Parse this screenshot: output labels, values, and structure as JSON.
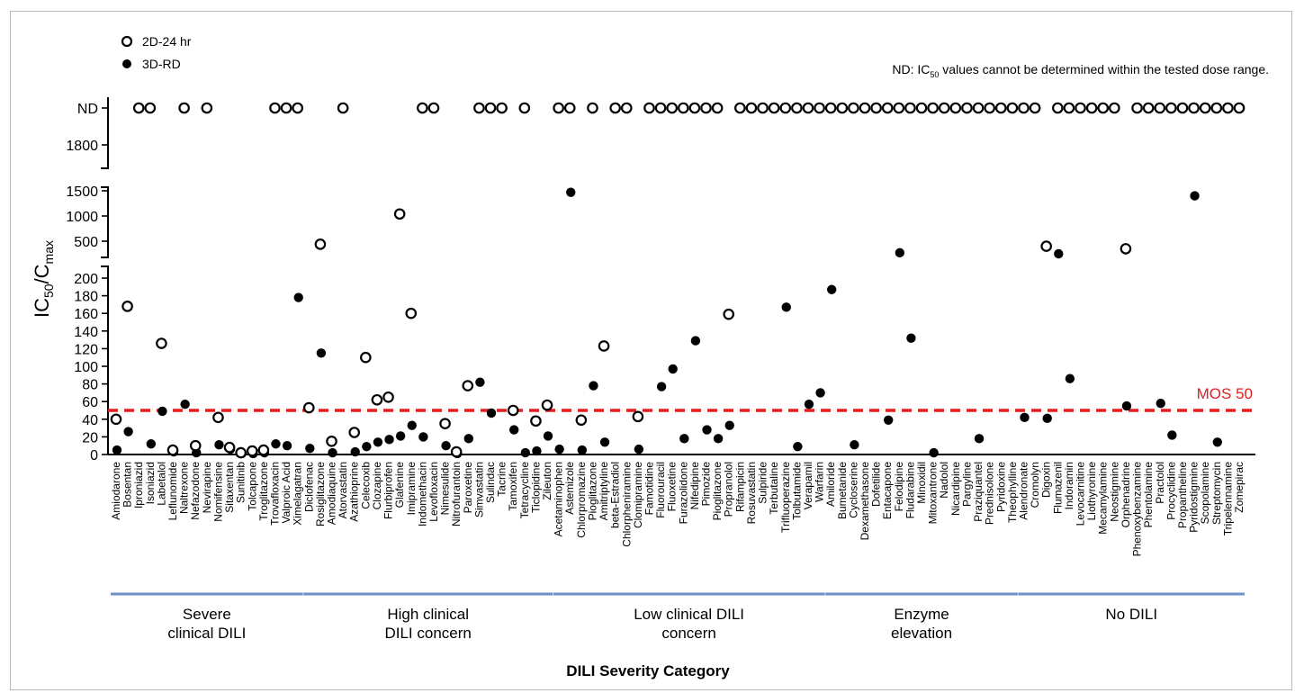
{
  "chart_data": {
    "type": "scatter",
    "title": "",
    "xlabel": "DILI Severity Category",
    "ylabel_main": "IC",
    "ylabel_sub1": "50",
    "ylabel_mid": "/C",
    "ylabel_sub2": "max",
    "note_prefix": "ND: IC",
    "note_sub": "50",
    "note_suffix": " values cannot be determined within the tested dose range.",
    "threshold": {
      "value": 50,
      "label": "MOS 50",
      "color": "#e02020"
    },
    "group_color": "#6e8fc8",
    "y_ticks_low": [
      "0",
      "20",
      "40",
      "60",
      "80",
      "100",
      "120",
      "140",
      "160",
      "180",
      "200"
    ],
    "y_ticks_mid": [
      "500",
      "1000",
      "1500"
    ],
    "y_ticks_top": [
      "1800",
      "ND"
    ],
    "series": [
      {
        "name": "2D-24 hr",
        "marker": "open-circle"
      },
      {
        "name": "3D-RD",
        "marker": "filled-circle"
      }
    ],
    "legend_position": "top-left",
    "groups": [
      {
        "name_line1": "Severe",
        "name_line2": "clinical DILI",
        "drugs": [
          "Amiodarone",
          "Bosentan",
          "Iproniazid",
          "Isoniazid",
          "Labetalol",
          "Leflunomide",
          "Naltrexone",
          "Nefazodone",
          "Nevirapine",
          "Nomifensine",
          "Sitaxentan",
          "Sunitinib",
          "Tolcapone",
          "Troglitazone",
          "Trovafloxacin",
          "Valproic Acid",
          "Ximelagatran"
        ],
        "d2": [
          40,
          168,
          "ND",
          "ND",
          126,
          5,
          "ND",
          10,
          "ND",
          42,
          8,
          2,
          4,
          5,
          "ND",
          "ND",
          "ND"
        ],
        "d3": [
          5,
          26,
          "ND",
          12,
          49,
          3,
          57,
          2,
          "ND",
          11,
          6,
          1,
          1,
          2,
          12,
          10,
          178
        ]
      },
      {
        "name_line1": "High clinical",
        "name_line2": "DILI concern",
        "drugs": [
          "Diclofenac",
          "Rosiglitazone",
          "Amodiaquine",
          "Atorvastatin",
          "Azathioprine",
          "Celecoxib",
          "Clozapine",
          "Flurbiprofen",
          "Glafenine",
          "Imipramine",
          "Indomethacin",
          "Levofloxacin",
          "Nimesulide",
          "Nitrofurantoin",
          "Paroxetine",
          "Simvastatin",
          "Sulindac",
          "Tacrine",
          "Tamoxifen",
          "Tetracycline",
          "Ticlopidine",
          "Zileuton"
        ],
        "d2": [
          53,
          440,
          15,
          "ND",
          25,
          110,
          62,
          65,
          1040,
          160,
          "ND",
          "ND",
          35,
          3,
          78,
          "ND",
          "ND",
          "ND",
          50,
          "ND",
          38,
          56
        ],
        "d3": [
          7,
          115,
          2,
          "ND",
          3,
          9,
          14,
          17,
          21,
          33,
          20,
          "ND",
          10,
          1,
          18,
          82,
          47,
          "ND",
          28,
          2,
          4,
          21
        ]
      },
      {
        "name_line1": "Low clinical DILI",
        "name_line2": "concern",
        "drugs": [
          "Acetaminophen",
          "Astemizole",
          "Chlorpromazine",
          "Pioglitazone",
          "Amitriptyline",
          "beta-Estradiol",
          "Chlorpheniramine",
          "Clomipramine",
          "Famotidine",
          "Fluorouracil",
          "Fluoxetine",
          "Furazolidone",
          "Nifedipine",
          "Pimozide",
          "Pioglitazone",
          "Propranolol",
          "Rifampicin",
          "Rosuvastatin",
          "Sulpiride",
          "Terbutaline",
          "Trifluoperazine",
          "Tolbutamide",
          "Verapamil",
          "Warfarin"
        ],
        "d2": [
          "ND",
          "ND",
          39,
          "ND",
          123,
          "ND",
          "ND",
          43,
          "ND",
          "ND",
          "ND",
          "ND",
          "ND",
          "ND",
          "ND",
          159,
          "ND",
          "ND",
          "ND",
          "ND",
          "ND",
          "ND",
          "ND",
          "ND"
        ],
        "d3": [
          6,
          1470,
          5,
          78,
          14,
          "ND",
          "ND",
          6,
          "ND",
          77,
          97,
          18,
          129,
          28,
          18,
          33,
          "ND",
          "ND",
          "ND",
          "ND",
          167,
          9,
          57,
          70
        ]
      },
      {
        "name_line1": "Enzyme",
        "name_line2": "elevation",
        "drugs": [
          "Amiloride",
          "Bumetanide",
          "Cycloserine",
          "Dexamethasone",
          "Dofetilide",
          "Entacapone",
          "Felodipine",
          "Fludarabine",
          "Minoxidil",
          "Mitoxantrone",
          "Nadolol",
          "Nicardipine",
          "Pargyline",
          "Praziquantel",
          "Prednisolone",
          "Pyridoxine",
          "Theophylline"
        ],
        "d2": [
          "ND",
          "ND",
          "ND",
          "ND",
          "ND",
          "ND",
          "ND",
          "ND",
          "ND",
          "ND",
          "ND",
          "ND",
          "ND",
          "ND",
          "ND",
          "ND",
          "ND"
        ],
        "d3": [
          187,
          "ND",
          11,
          "ND",
          "ND",
          39,
          270,
          132,
          "ND",
          2,
          "ND",
          "ND",
          "ND",
          18,
          "ND",
          "ND",
          "ND"
        ]
      },
      {
        "name_line1": "No DILI",
        "name_line2": "",
        "drugs": [
          "Alendronate",
          "Cromolyn",
          "Digoxin",
          "Flumazenil",
          "Indoramin",
          "Levocarnitine",
          "Liothyronine",
          "Mecamylamine",
          "Neostigmine",
          "Orphenadrine",
          "Phenoxybenzamine",
          "Phentolamine",
          "Practolol",
          "Procyclidine",
          "Propantheline",
          "Pyridostigmine",
          "Scopolamine",
          "Streptomycin",
          "Tripelennamine",
          "Zomepirac"
        ],
        "d2": [
          "ND",
          "ND",
          400,
          "ND",
          "ND",
          "ND",
          "ND",
          "ND",
          "ND",
          350,
          "ND",
          "ND",
          "ND",
          "ND",
          "ND",
          "ND",
          "ND",
          "ND",
          "ND",
          "ND"
        ],
        "d3": [
          42,
          "ND",
          41,
          250,
          86,
          "ND",
          "ND",
          "ND",
          "ND",
          55,
          "ND",
          "ND",
          58,
          22,
          "ND",
          1400,
          "ND",
          14,
          "ND",
          "ND"
        ]
      }
    ]
  }
}
